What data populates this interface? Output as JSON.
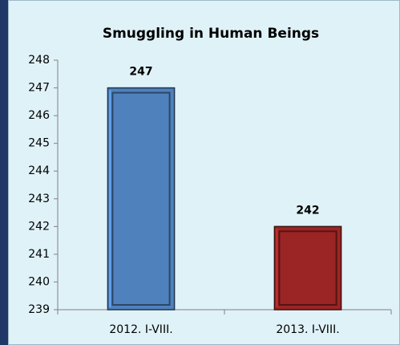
{
  "chart_data": {
    "type": "bar",
    "title": "Smuggling in Human Beings",
    "categories": [
      "2012. I-VIII.",
      "2013. I-VIII."
    ],
    "values": [
      247,
      242
    ],
    "colors": [
      "#4f81bd",
      "#9b2524"
    ],
    "ylim": [
      239,
      248
    ],
    "yticks": [
      239,
      240,
      241,
      242,
      243,
      244,
      245,
      246,
      247,
      248
    ],
    "grid": false
  }
}
